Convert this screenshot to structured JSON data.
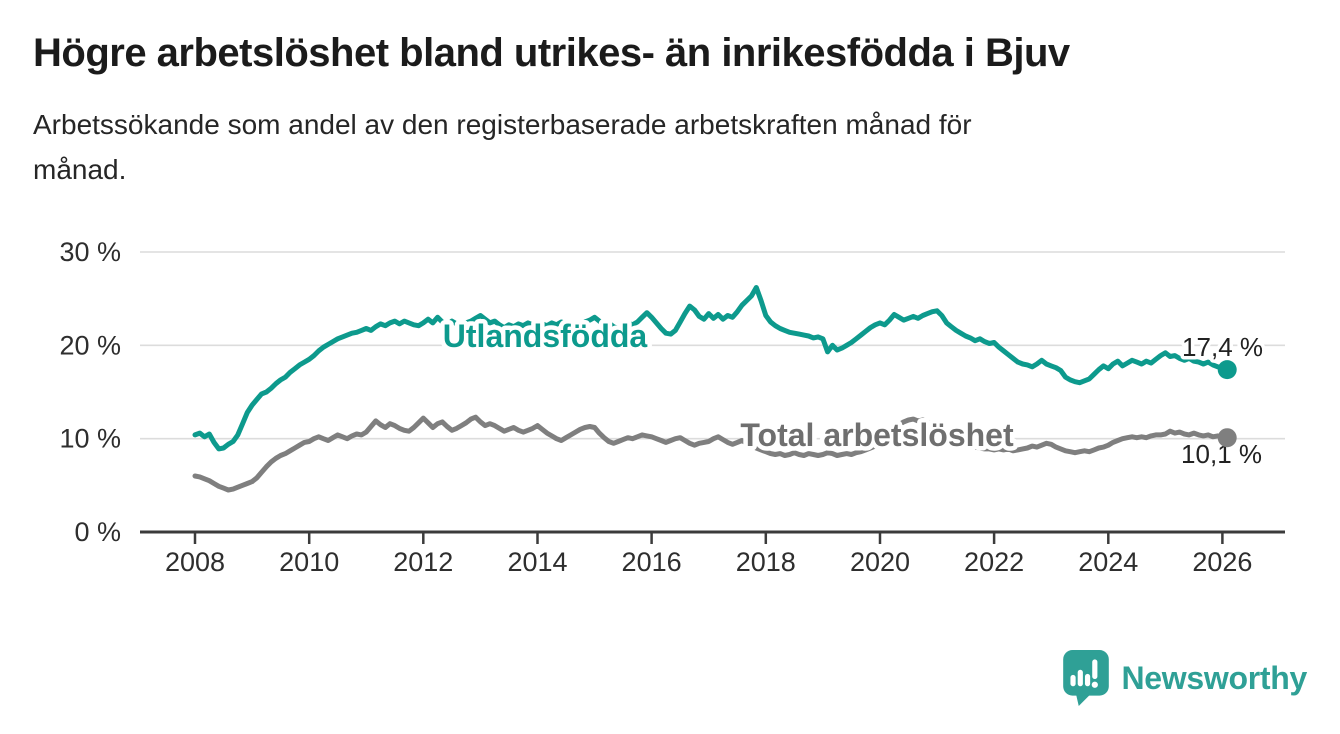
{
  "header": {
    "title": "Högre arbetslöshet bland utrikes- än inrikesfödda i Bjuv",
    "subtitle": "Arbetssökande som andel av den registerbaserade arbetskraften månad för månad.",
    "subtitle_lines": [
      "Arbetssökande som andel av den registerbaserade arbetskraften månad för",
      "månad."
    ]
  },
  "footer": {
    "brand": "Newsworthy"
  },
  "colors": {
    "grid": "#dcdcdc",
    "axis": "#3b3b3b",
    "axis_text": "#2e2e2e",
    "value_text": "#222222",
    "brand": "#2fa096",
    "halo": "#ffffff"
  },
  "chart_data": {
    "type": "line",
    "title": "Högre arbetslöshet bland utrikes- än inrikesfödda i Bjuv",
    "subtitle": "Arbetssökande som andel av den registerbaserade arbetskraften månad för månad.",
    "xlabel": "",
    "ylabel": "%",
    "x_start": 2008.0,
    "x_step_months": 1,
    "xlim": [
      2007,
      2027
    ],
    "ylim": [
      0,
      30
    ],
    "grid": true,
    "legend_position": "inline-labels",
    "yticks": [
      {
        "value": 0,
        "label": "0 %"
      },
      {
        "value": 10,
        "label": "10 %"
      },
      {
        "value": 20,
        "label": "20 %"
      },
      {
        "value": 30,
        "label": "30 %"
      }
    ],
    "xticks": [
      {
        "value": 2008,
        "label": "2008"
      },
      {
        "value": 2010,
        "label": "2010"
      },
      {
        "value": 2012,
        "label": "2012"
      },
      {
        "value": 2014,
        "label": "2014"
      },
      {
        "value": 2016,
        "label": "2016"
      },
      {
        "value": 2018,
        "label": "2018"
      },
      {
        "value": 2020,
        "label": "2020"
      },
      {
        "value": 2022,
        "label": "2022"
      },
      {
        "value": 2024,
        "label": "2024"
      },
      {
        "value": 2026,
        "label": "2026"
      }
    ],
    "series": [
      {
        "id": "utlandsfodda",
        "name": "Utlandsfödda",
        "color": "#0d9a8d",
        "label_color": "#0d9a8d",
        "end_label": "17,4 %",
        "end_value": 17.4,
        "values": [
          10.4,
          10.6,
          10.2,
          10.5,
          9.6,
          8.9,
          9.0,
          9.4,
          9.7,
          10.4,
          11.6,
          12.8,
          13.6,
          14.2,
          14.8,
          15.0,
          15.4,
          15.9,
          16.3,
          16.6,
          17.1,
          17.5,
          17.9,
          18.2,
          18.5,
          18.9,
          19.4,
          19.8,
          20.1,
          20.4,
          20.7,
          20.9,
          21.1,
          21.3,
          21.4,
          21.6,
          21.8,
          21.6,
          22.0,
          22.3,
          22.1,
          22.4,
          22.6,
          22.3,
          22.6,
          22.4,
          22.2,
          22.1,
          22.4,
          22.8,
          22.4,
          23.0,
          22.5,
          22.1,
          22.6,
          22.3,
          22.0,
          22.4,
          22.6,
          22.9,
          23.2,
          22.8,
          22.4,
          22.6,
          22.2,
          21.9,
          22.2,
          22.0,
          22.3,
          22.1,
          22.4,
          22.2,
          22.0,
          22.3,
          22.1,
          22.4,
          22.2,
          22.5,
          22.3,
          22.1,
          22.4,
          22.2,
          22.5,
          22.7,
          23.0,
          22.6,
          22.2,
          22.4,
          22.0,
          21.8,
          22.1,
          22.4,
          22.2,
          22.5,
          23.0,
          23.5,
          23.0,
          22.4,
          21.8,
          21.3,
          21.2,
          21.6,
          22.5,
          23.4,
          24.2,
          23.8,
          23.1,
          22.8,
          23.4,
          22.9,
          23.3,
          22.8,
          23.2,
          23.0,
          23.6,
          24.3,
          24.8,
          25.3,
          26.2,
          24.8,
          23.2,
          22.5,
          22.1,
          21.8,
          21.6,
          21.4,
          21.3,
          21.2,
          21.1,
          21.0,
          20.8,
          20.9,
          20.7,
          19.3,
          20.0,
          19.5,
          19.7,
          20.0,
          20.3,
          20.7,
          21.1,
          21.5,
          21.9,
          22.2,
          22.4,
          22.2,
          22.7,
          23.3,
          23.0,
          22.7,
          22.9,
          23.1,
          22.9,
          23.2,
          23.4,
          23.6,
          23.7,
          23.2,
          22.4,
          22.0,
          21.6,
          21.3,
          21.0,
          20.8,
          20.5,
          20.7,
          20.4,
          20.2,
          20.3,
          19.8,
          19.4,
          19.0,
          18.6,
          18.2,
          18.0,
          17.9,
          17.7,
          18.0,
          18.4,
          18.0,
          17.8,
          17.6,
          17.3,
          16.6,
          16.3,
          16.1,
          16.0,
          16.2,
          16.4,
          16.9,
          17.4,
          17.8,
          17.5,
          18.0,
          18.3,
          17.8,
          18.1,
          18.4,
          18.2,
          18.0,
          18.3,
          18.1,
          18.5,
          18.9,
          19.2,
          18.8,
          18.9,
          18.6,
          18.4,
          18.6,
          18.3,
          18.2,
          18.0,
          18.2,
          17.9,
          17.7,
          17.6,
          17.4
        ]
      },
      {
        "id": "total-arbetsloshet",
        "name": "Total arbetslöshet",
        "color": "#7f7f7f",
        "label_color": "#6f6f6f",
        "end_label": "10,1 %",
        "end_value": 10.1,
        "values": [
          6.0,
          5.9,
          5.7,
          5.5,
          5.2,
          4.9,
          4.7,
          4.5,
          4.6,
          4.8,
          5.0,
          5.2,
          5.4,
          5.8,
          6.4,
          7.0,
          7.5,
          7.9,
          8.2,
          8.4,
          8.7,
          9.0,
          9.3,
          9.6,
          9.7,
          10.0,
          10.2,
          10.0,
          9.8,
          10.1,
          10.4,
          10.2,
          10.0,
          10.3,
          10.5,
          10.4,
          10.7,
          11.3,
          11.9,
          11.5,
          11.2,
          11.6,
          11.4,
          11.1,
          10.9,
          10.8,
          11.2,
          11.7,
          12.2,
          11.7,
          11.2,
          11.6,
          11.8,
          11.3,
          10.9,
          11.1,
          11.4,
          11.7,
          12.1,
          12.3,
          11.8,
          11.4,
          11.6,
          11.4,
          11.1,
          10.8,
          11.0,
          11.2,
          10.9,
          10.7,
          10.9,
          11.1,
          11.4,
          11.0,
          10.6,
          10.3,
          10.0,
          9.8,
          10.1,
          10.4,
          10.7,
          11.0,
          11.2,
          11.3,
          11.2,
          10.6,
          10.1,
          9.7,
          9.5,
          9.7,
          9.9,
          10.1,
          10.0,
          10.2,
          10.4,
          10.3,
          10.2,
          10.0,
          9.8,
          9.6,
          9.8,
          10.0,
          10.1,
          9.8,
          9.5,
          9.3,
          9.5,
          9.6,
          9.7,
          10.0,
          10.2,
          9.9,
          9.6,
          9.4,
          9.6,
          9.8,
          9.5,
          9.2,
          9.0,
          8.8,
          8.6,
          8.4,
          8.3,
          8.4,
          8.2,
          8.3,
          8.5,
          8.3,
          8.2,
          8.4,
          8.3,
          8.2,
          8.3,
          8.5,
          8.4,
          8.2,
          8.3,
          8.4,
          8.3,
          8.5,
          8.6,
          8.8,
          9.0,
          9.2,
          9.5,
          9.8,
          10.4,
          11.0,
          11.5,
          11.8,
          12.0,
          12.1,
          11.9,
          12.0,
          11.8,
          11.6,
          11.2,
          10.7,
          10.3,
          10.0,
          9.8,
          9.6,
          9.4,
          9.2,
          9.1,
          9.0,
          8.9,
          8.9,
          8.8,
          8.9,
          8.8,
          8.9,
          8.7,
          8.8,
          8.9,
          9.0,
          9.2,
          9.1,
          9.3,
          9.5,
          9.4,
          9.1,
          8.9,
          8.7,
          8.6,
          8.5,
          8.6,
          8.7,
          8.6,
          8.8,
          9.0,
          9.1,
          9.3,
          9.6,
          9.8,
          10.0,
          10.1,
          10.2,
          10.1,
          10.2,
          10.1,
          10.3,
          10.4,
          10.4,
          10.5,
          10.8,
          10.6,
          10.7,
          10.5,
          10.4,
          10.6,
          10.4,
          10.3,
          10.4,
          10.2,
          10.3,
          10.2,
          10.1
        ]
      }
    ]
  }
}
